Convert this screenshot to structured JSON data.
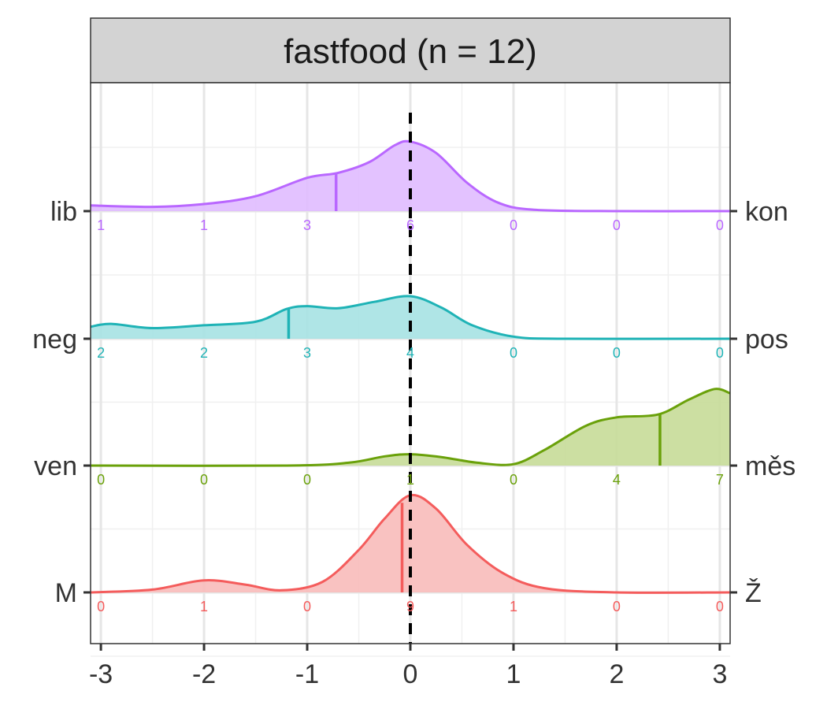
{
  "chart_data": {
    "type": "area",
    "title": "fastfood (n = 12)",
    "xlim": [
      -3.1,
      3.1
    ],
    "x_ticks": [
      "-3",
      "-2",
      "-1",
      "0",
      "1",
      "2",
      "3"
    ],
    "x_tick_values": [
      -3,
      -2,
      -1,
      0,
      1,
      2,
      3
    ],
    "count_positions": [
      -3,
      -2,
      -1,
      0,
      1,
      2,
      3
    ],
    "grid": true,
    "reference_line": 0,
    "series": [
      {
        "left_label": "lib",
        "right_label": "kon",
        "color": "#B967FF",
        "fill": "#E0BBFF",
        "mean": -0.72,
        "counts": [
          1,
          1,
          3,
          6,
          0,
          0,
          0
        ],
        "density": [
          [
            -3.1,
            0.08
          ],
          [
            -2.5,
            0.06
          ],
          [
            -2.0,
            0.1
          ],
          [
            -1.5,
            0.21
          ],
          [
            -1.0,
            0.47
          ],
          [
            -0.7,
            0.54
          ],
          [
            -0.4,
            0.69
          ],
          [
            -0.15,
            0.93
          ],
          [
            0.0,
            0.98
          ],
          [
            0.25,
            0.82
          ],
          [
            0.55,
            0.4
          ],
          [
            0.85,
            0.12
          ],
          [
            1.2,
            0.02
          ],
          [
            2.0,
            0.0
          ],
          [
            3.1,
            0.0
          ]
        ]
      },
      {
        "left_label": "neg",
        "right_label": "pos",
        "color": "#1FB3B6",
        "fill": "#A6E2E3",
        "mean": -1.18,
        "counts": [
          2,
          2,
          3,
          4,
          0,
          0,
          0
        ],
        "density": [
          [
            -3.1,
            0.17
          ],
          [
            -2.9,
            0.21
          ],
          [
            -2.5,
            0.15
          ],
          [
            -2.0,
            0.19
          ],
          [
            -1.5,
            0.24
          ],
          [
            -1.2,
            0.42
          ],
          [
            -1.0,
            0.46
          ],
          [
            -0.7,
            0.43
          ],
          [
            -0.35,
            0.52
          ],
          [
            0.0,
            0.6
          ],
          [
            0.3,
            0.44
          ],
          [
            0.6,
            0.19
          ],
          [
            1.0,
            0.03
          ],
          [
            1.5,
            0.0
          ],
          [
            3.1,
            0.0
          ]
        ]
      },
      {
        "left_label": "ven",
        "right_label": "měs",
        "color": "#6AA10A",
        "fill": "#C7DB98",
        "mean": 2.42,
        "counts": [
          0,
          0,
          0,
          1,
          0,
          4,
          7
        ],
        "density": [
          [
            -3.1,
            0.0
          ],
          [
            -1.2,
            0.0
          ],
          [
            -0.6,
            0.04
          ],
          [
            -0.25,
            0.13
          ],
          [
            0.0,
            0.16
          ],
          [
            0.3,
            0.12
          ],
          [
            0.65,
            0.04
          ],
          [
            1.0,
            0.02
          ],
          [
            1.3,
            0.22
          ],
          [
            1.7,
            0.56
          ],
          [
            2.0,
            0.68
          ],
          [
            2.4,
            0.72
          ],
          [
            2.7,
            0.93
          ],
          [
            2.95,
            1.08
          ],
          [
            3.1,
            1.02
          ]
        ]
      },
      {
        "left_label": "M",
        "right_label": "Ž",
        "color": "#F45C5C",
        "fill": "#F8BBBA",
        "mean": -0.08,
        "counts": [
          0,
          1,
          0,
          9,
          1,
          0,
          0
        ],
        "density": [
          [
            -3.1,
            0.0
          ],
          [
            -2.5,
            0.04
          ],
          [
            -2.0,
            0.17
          ],
          [
            -1.6,
            0.11
          ],
          [
            -1.25,
            0.03
          ],
          [
            -0.85,
            0.15
          ],
          [
            -0.5,
            0.6
          ],
          [
            -0.25,
            1.04
          ],
          [
            0.0,
            1.37
          ],
          [
            0.25,
            1.18
          ],
          [
            0.55,
            0.67
          ],
          [
            0.9,
            0.27
          ],
          [
            1.3,
            0.06
          ],
          [
            2.0,
            0.0
          ],
          [
            3.1,
            0.0
          ]
        ]
      }
    ]
  }
}
